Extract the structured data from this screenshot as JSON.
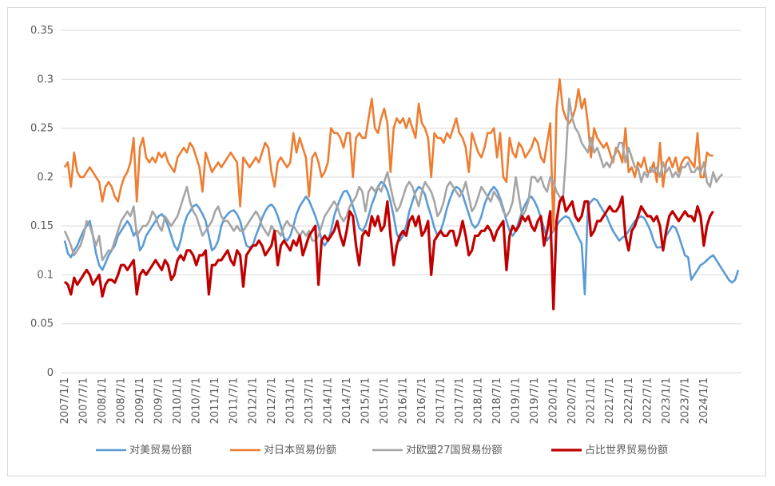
{
  "chart_data": {
    "type": "line",
    "title": "",
    "xlabel": "",
    "ylabel": "",
    "ylim": [
      0,
      0.35
    ],
    "yticks": [
      "0",
      "0.05",
      "0.1",
      "0.15",
      "0.2",
      "0.25",
      "0.3",
      "0.35"
    ],
    "grid": true,
    "legend_position": "bottom",
    "x_tick_labels": [
      "2007/1/1",
      "2007/7/1",
      "2008/1/1",
      "2008/7/1",
      "2009/1/1",
      "2009/7/1",
      "2010/1/1",
      "2010/7/1",
      "2011/1/1",
      "2011/7/1",
      "2012/1/1",
      "2012/7/1",
      "2013/1/1",
      "2013/7/1",
      "2014/1/1",
      "2014/7/1",
      "2015/1/1",
      "2015/7/1",
      "2016/1/1",
      "2016/7/1",
      "2017/1/1",
      "2017/7/1",
      "2018/1/1",
      "2018/7/1",
      "2019/1/1",
      "2019/7/1",
      "2020/1/1",
      "2020/7/1",
      "2021/1/1",
      "2021/7/1",
      "2022/1/1",
      "2022/7/1",
      "2023/1/1",
      "2023/7/1",
      "2024/1/1"
    ],
    "x_index_per_label": 6,
    "series": [
      {
        "name": "对美贸易份额",
        "color": "#5B9BD5",
        "values": [
          0.135,
          0.122,
          0.118,
          0.125,
          0.13,
          0.138,
          0.145,
          0.15,
          0.155,
          0.14,
          0.122,
          0.11,
          0.105,
          0.112,
          0.12,
          0.125,
          0.13,
          0.14,
          0.145,
          0.15,
          0.155,
          0.15,
          0.14,
          0.145,
          0.125,
          0.13,
          0.14,
          0.145,
          0.15,
          0.155,
          0.16,
          0.162,
          0.158,
          0.15,
          0.14,
          0.13,
          0.125,
          0.135,
          0.15,
          0.16,
          0.165,
          0.17,
          0.172,
          0.168,
          0.162,
          0.155,
          0.14,
          0.125,
          0.128,
          0.135,
          0.15,
          0.158,
          0.162,
          0.165,
          0.166,
          0.162,
          0.155,
          0.142,
          0.13,
          0.128,
          0.13,
          0.14,
          0.148,
          0.158,
          0.165,
          0.17,
          0.172,
          0.168,
          0.16,
          0.15,
          0.138,
          0.135,
          0.14,
          0.15,
          0.162,
          0.17,
          0.175,
          0.18,
          0.176,
          0.168,
          0.16,
          0.15,
          0.135,
          0.13,
          0.135,
          0.145,
          0.16,
          0.17,
          0.178,
          0.185,
          0.186,
          0.18,
          0.17,
          0.16,
          0.148,
          0.145,
          0.15,
          0.16,
          0.172,
          0.18,
          0.19,
          0.195,
          0.193,
          0.186,
          0.175,
          0.16,
          0.142,
          0.135,
          0.14,
          0.15,
          0.165,
          0.175,
          0.185,
          0.19,
          0.188,
          0.182,
          0.17,
          0.16,
          0.148,
          0.14,
          0.145,
          0.155,
          0.168,
          0.178,
          0.186,
          0.19,
          0.188,
          0.182,
          0.172,
          0.162,
          0.152,
          0.148,
          0.152,
          0.16,
          0.172,
          0.18,
          0.186,
          0.19,
          0.186,
          0.178,
          0.168,
          0.155,
          0.145,
          0.14,
          0.145,
          0.155,
          0.165,
          0.172,
          0.178,
          0.18,
          0.175,
          0.168,
          0.158,
          0.148,
          0.135,
          0.14,
          0.145,
          0.15,
          0.155,
          0.158,
          0.16,
          0.158,
          0.152,
          0.145,
          0.138,
          0.132,
          0.08,
          0.17,
          0.175,
          0.178,
          0.176,
          0.17,
          0.165,
          0.16,
          0.152,
          0.145,
          0.14,
          0.135,
          0.138,
          0.14,
          0.145,
          0.15,
          0.155,
          0.158,
          0.16,
          0.158,
          0.152,
          0.145,
          0.135,
          0.128,
          0.128,
          0.13,
          0.14,
          0.145,
          0.15,
          0.148,
          0.14,
          0.13,
          0.12,
          0.118,
          0.095,
          0.1,
          0.105,
          0.11,
          0.112,
          0.115,
          0.118,
          0.12,
          0.115,
          0.11,
          0.105,
          0.1,
          0.095,
          0.092,
          0.095,
          0.105
        ]
      },
      {
        "name": "对日本贸易份额",
        "color": "#ED7D31",
        "values": [
          0.21,
          0.215,
          0.19,
          0.225,
          0.205,
          0.2,
          0.2,
          0.205,
          0.21,
          0.205,
          0.2,
          0.195,
          0.175,
          0.19,
          0.195,
          0.19,
          0.18,
          0.175,
          0.19,
          0.2,
          0.205,
          0.215,
          0.24,
          0.175,
          0.23,
          0.24,
          0.22,
          0.215,
          0.22,
          0.215,
          0.225,
          0.22,
          0.225,
          0.215,
          0.21,
          0.205,
          0.22,
          0.225,
          0.23,
          0.225,
          0.235,
          0.23,
          0.22,
          0.21,
          0.185,
          0.225,
          0.215,
          0.205,
          0.21,
          0.215,
          0.21,
          0.215,
          0.22,
          0.225,
          0.22,
          0.215,
          0.17,
          0.22,
          0.215,
          0.21,
          0.215,
          0.22,
          0.215,
          0.225,
          0.235,
          0.23,
          0.205,
          0.19,
          0.215,
          0.22,
          0.215,
          0.21,
          0.215,
          0.245,
          0.225,
          0.24,
          0.23,
          0.22,
          0.18,
          0.22,
          0.225,
          0.215,
          0.2,
          0.205,
          0.215,
          0.25,
          0.245,
          0.245,
          0.24,
          0.23,
          0.245,
          0.245,
          0.2,
          0.24,
          0.245,
          0.24,
          0.24,
          0.26,
          0.28,
          0.25,
          0.245,
          0.26,
          0.27,
          0.255,
          0.205,
          0.25,
          0.26,
          0.255,
          0.26,
          0.25,
          0.26,
          0.25,
          0.24,
          0.275,
          0.255,
          0.25,
          0.24,
          0.2,
          0.245,
          0.24,
          0.24,
          0.235,
          0.245,
          0.24,
          0.25,
          0.26,
          0.245,
          0.24,
          0.23,
          0.205,
          0.245,
          0.235,
          0.225,
          0.22,
          0.23,
          0.245,
          0.245,
          0.25,
          0.22,
          0.245,
          0.2,
          0.195,
          0.24,
          0.225,
          0.22,
          0.235,
          0.23,
          0.22,
          0.225,
          0.23,
          0.24,
          0.235,
          0.22,
          0.215,
          0.235,
          0.255,
          0.145,
          0.27,
          0.3,
          0.27,
          0.26,
          0.255,
          0.26,
          0.27,
          0.29,
          0.27,
          0.28,
          0.255,
          0.22,
          0.25,
          0.24,
          0.235,
          0.23,
          0.235,
          0.225,
          0.215,
          0.23,
          0.225,
          0.215,
          0.25,
          0.205,
          0.21,
          0.2,
          0.215,
          0.21,
          0.22,
          0.205,
          0.205,
          0.215,
          0.195,
          0.235,
          0.19,
          0.215,
          0.22,
          0.21,
          0.22,
          0.205,
          0.215,
          0.22,
          0.22,
          0.215,
          0.21,
          0.245,
          0.2,
          0.2,
          0.225,
          0.222,
          0.222
        ]
      },
      {
        "name": "对欧盟27国贸易份额",
        "color": "#A5A5A5",
        "values": [
          0.145,
          0.138,
          0.13,
          0.12,
          0.125,
          0.13,
          0.14,
          0.155,
          0.15,
          0.14,
          0.13,
          0.14,
          0.115,
          0.12,
          0.125,
          0.125,
          0.135,
          0.145,
          0.155,
          0.16,
          0.165,
          0.16,
          0.17,
          0.14,
          0.145,
          0.15,
          0.15,
          0.155,
          0.165,
          0.16,
          0.15,
          0.145,
          0.16,
          0.155,
          0.15,
          0.155,
          0.16,
          0.17,
          0.18,
          0.19,
          0.175,
          0.165,
          0.16,
          0.15,
          0.14,
          0.145,
          0.15,
          0.155,
          0.165,
          0.17,
          0.16,
          0.155,
          0.155,
          0.15,
          0.145,
          0.15,
          0.145,
          0.145,
          0.15,
          0.155,
          0.16,
          0.165,
          0.16,
          0.15,
          0.145,
          0.14,
          0.15,
          0.145,
          0.145,
          0.14,
          0.15,
          0.155,
          0.15,
          0.15,
          0.145,
          0.14,
          0.145,
          0.14,
          0.145,
          0.135,
          0.135,
          0.14,
          0.15,
          0.16,
          0.165,
          0.17,
          0.175,
          0.17,
          0.16,
          0.155,
          0.16,
          0.17,
          0.175,
          0.18,
          0.19,
          0.185,
          0.165,
          0.185,
          0.19,
          0.185,
          0.19,
          0.185,
          0.195,
          0.205,
          0.19,
          0.175,
          0.165,
          0.17,
          0.18,
          0.19,
          0.195,
          0.19,
          0.18,
          0.17,
          0.185,
          0.195,
          0.19,
          0.185,
          0.175,
          0.16,
          0.165,
          0.175,
          0.19,
          0.195,
          0.19,
          0.185,
          0.18,
          0.185,
          0.195,
          0.18,
          0.165,
          0.17,
          0.18,
          0.19,
          0.185,
          0.18,
          0.175,
          0.185,
          0.18,
          0.175,
          0.165,
          0.16,
          0.165,
          0.175,
          0.2,
          0.18,
          0.16,
          0.165,
          0.175,
          0.2,
          0.2,
          0.195,
          0.2,
          0.19,
          0.185,
          0.2,
          0.195,
          0.185,
          0.18,
          0.175,
          0.22,
          0.28,
          0.26,
          0.25,
          0.245,
          0.235,
          0.23,
          0.225,
          0.24,
          0.225,
          0.23,
          0.22,
          0.21,
          0.215,
          0.21,
          0.22,
          0.225,
          0.235,
          0.235,
          0.215,
          0.23,
          0.22,
          0.21,
          0.21,
          0.195,
          0.205,
          0.2,
          0.21,
          0.205,
          0.21,
          0.2,
          0.215,
          0.205,
          0.21,
          0.2,
          0.205,
          0.2,
          0.21,
          0.21,
          0.215,
          0.205,
          0.205,
          0.21,
          0.205,
          0.215,
          0.195,
          0.19,
          0.205,
          0.195,
          0.2,
          0.203
        ]
      },
      {
        "name": "占比世界贸易份额",
        "color": "#C00000",
        "values": [
          0.093,
          0.09,
          0.08,
          0.097,
          0.09,
          0.095,
          0.1,
          0.105,
          0.1,
          0.09,
          0.095,
          0.1,
          0.078,
          0.09,
          0.095,
          0.095,
          0.092,
          0.1,
          0.11,
          0.11,
          0.105,
          0.11,
          0.115,
          0.08,
          0.1,
          0.105,
          0.1,
          0.105,
          0.11,
          0.115,
          0.11,
          0.105,
          0.115,
          0.11,
          0.095,
          0.1,
          0.115,
          0.12,
          0.115,
          0.125,
          0.125,
          0.12,
          0.11,
          0.12,
          0.12,
          0.125,
          0.08,
          0.11,
          0.11,
          0.115,
          0.115,
          0.12,
          0.125,
          0.115,
          0.11,
          0.125,
          0.12,
          0.088,
          0.12,
          0.125,
          0.13,
          0.13,
          0.135,
          0.13,
          0.12,
          0.125,
          0.13,
          0.145,
          0.11,
          0.13,
          0.135,
          0.13,
          0.125,
          0.135,
          0.13,
          0.14,
          0.12,
          0.13,
          0.14,
          0.145,
          0.15,
          0.09,
          0.135,
          0.14,
          0.135,
          0.14,
          0.145,
          0.155,
          0.14,
          0.13,
          0.145,
          0.165,
          0.16,
          0.13,
          0.11,
          0.14,
          0.145,
          0.14,
          0.16,
          0.15,
          0.16,
          0.145,
          0.15,
          0.175,
          0.14,
          0.11,
          0.13,
          0.14,
          0.145,
          0.14,
          0.155,
          0.16,
          0.15,
          0.16,
          0.14,
          0.145,
          0.155,
          0.1,
          0.135,
          0.14,
          0.145,
          0.14,
          0.14,
          0.145,
          0.145,
          0.13,
          0.14,
          0.155,
          0.14,
          0.12,
          0.125,
          0.14,
          0.14,
          0.145,
          0.145,
          0.15,
          0.145,
          0.135,
          0.145,
          0.15,
          0.155,
          0.105,
          0.14,
          0.15,
          0.145,
          0.15,
          0.16,
          0.155,
          0.16,
          0.15,
          0.145,
          0.155,
          0.16,
          0.13,
          0.145,
          0.165,
          0.065,
          0.155,
          0.175,
          0.18,
          0.165,
          0.17,
          0.175,
          0.16,
          0.155,
          0.16,
          0.175,
          0.175,
          0.14,
          0.145,
          0.155,
          0.155,
          0.16,
          0.165,
          0.17,
          0.165,
          0.165,
          0.17,
          0.18,
          0.14,
          0.125,
          0.145,
          0.15,
          0.16,
          0.17,
          0.165,
          0.16,
          0.16,
          0.155,
          0.16,
          0.15,
          0.125,
          0.145,
          0.16,
          0.165,
          0.16,
          0.155,
          0.16,
          0.165,
          0.16,
          0.16,
          0.155,
          0.17,
          0.16,
          0.13,
          0.15,
          0.16,
          0.165
        ]
      }
    ]
  }
}
